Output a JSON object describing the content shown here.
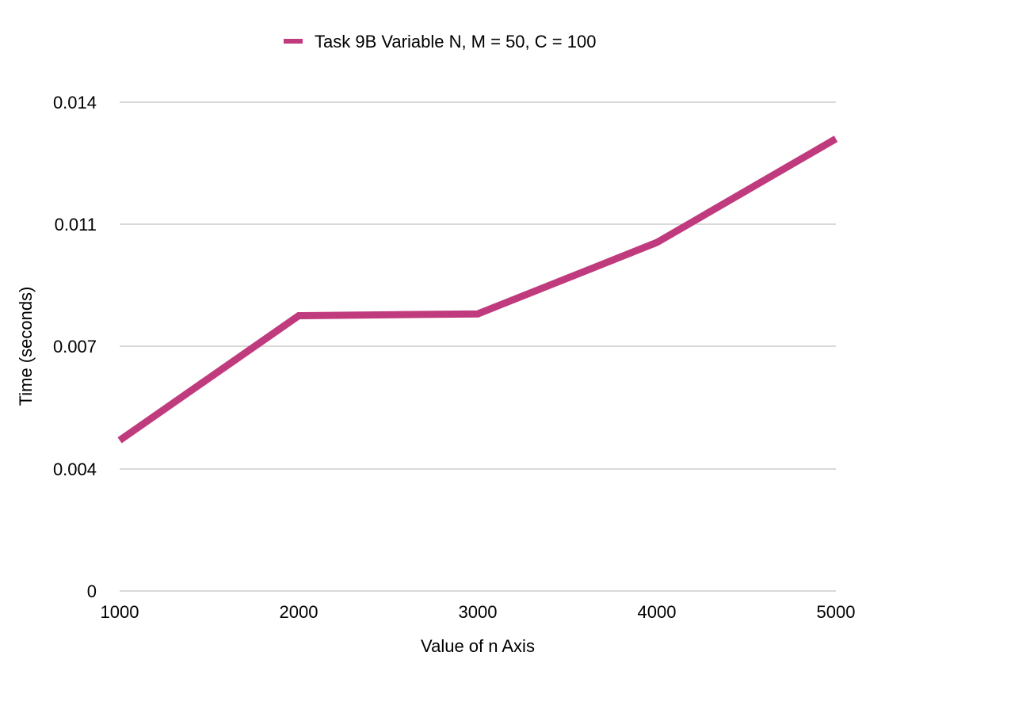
{
  "chart_data": {
    "type": "line",
    "title": "",
    "xlabel": "Value of n Axis",
    "ylabel": "Time (seconds)",
    "x": [
      1000,
      2000,
      3000,
      4000,
      5000
    ],
    "x_tick_labels": [
      "1000",
      "2000",
      "3000",
      "4000",
      "5000"
    ],
    "y_ticks": [
      0,
      0.004,
      0.007,
      0.011,
      0.014
    ],
    "y_tick_labels": [
      "0",
      "0.004",
      "0.007",
      "0.011",
      "0.014"
    ],
    "xlim": [
      1000,
      5000
    ],
    "ylim": [
      0,
      0.014
    ],
    "grid": "horizontal",
    "legend_position": "top-center",
    "series": [
      {
        "name": "Task 9B Variable N, M = 50, C = 100",
        "color": "#c03b7e",
        "values": [
          0.0047,
          0.008,
          0.00806,
          0.0104,
          0.0131
        ]
      }
    ]
  }
}
